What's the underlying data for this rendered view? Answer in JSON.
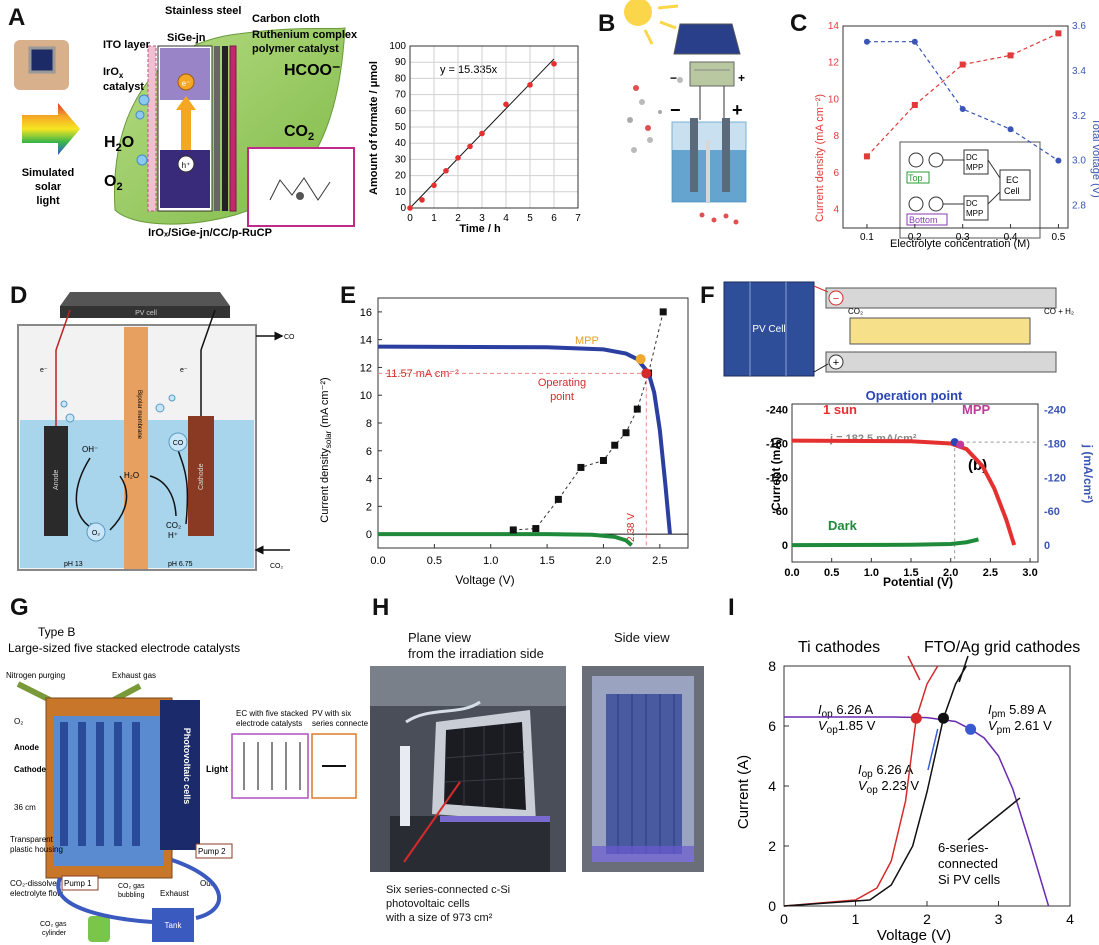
{
  "panels": {
    "A": "A",
    "B": "B",
    "C": "C",
    "D": "D",
    "E": "E",
    "F": "F",
    "G": "G",
    "H": "H",
    "I": "I"
  },
  "panel_a": {
    "labels": {
      "ito": "ITO layer",
      "irox_1": "IrO",
      "irox_sub": "x",
      "irox_2": "catalyst",
      "stainless": "Stainless steel",
      "carbon": "Carbon cloth",
      "siGe": "SiGe-jn",
      "ruth_1": "Ruthenium complex",
      "ruth_2": "polymer catalyst",
      "hcoo": "HCOO⁻",
      "co2": "CO",
      "co2_sub": "2",
      "h2o": "H",
      "h2o_sub": "2",
      "h2o_end": "O",
      "o2": "O",
      "o2_sub": "2",
      "e": "e⁻",
      "h": "h⁺",
      "sim_1": "Simulated",
      "sim_2": "solar",
      "sim_3": "light",
      "caption": "IrOₓ/SiGe-jn/CC/p-RuCP"
    },
    "chart": {
      "equation": "y = 15.335x",
      "xlabel": "Time / h",
      "ylabel": "Amount of formate / μmol"
    }
  },
  "panel_c": {
    "xlabel": "Electrolyte concentration (M)",
    "ylabel_left": "Current density (mA cm⁻²)",
    "ylabel_right": "Total voltage (V)",
    "inset": {
      "top": "Top",
      "bottom": "Bottom",
      "dc": "DC",
      "mpp": "MPP",
      "ec": "EC",
      "cell": "Cell"
    },
    "colors": {
      "red": "#e03a3a",
      "blue": "#3a55b5",
      "green": "#2a9a3a",
      "purple": "#8a3ab5"
    }
  },
  "panel_d": {
    "pv_cell": "PV cell",
    "bipolar": "Bipolar membrane",
    "anode": "Anode",
    "cathode": "Cathode",
    "oh": "OH⁻",
    "h2o": "H₂O",
    "co_label": "CO",
    "co2_h": "CO₂",
    "h_plus": "H⁺",
    "o2": "O₂",
    "co_bubble": "CO",
    "e_left": "e⁻",
    "e_right": "e⁻",
    "ph_left": "pH 13",
    "ph_right": "pH 6.75",
    "co2_in": "CO₂",
    "arrow_co": "CO"
  },
  "panel_e": {
    "xlabel": "Voltage  (V)",
    "ylabel": "Current density",
    "ylabel_sub": "solar",
    "ylabel_unit": "  (mA cm⁻²)",
    "mpp": "MPP",
    "operating_1": "Operating",
    "operating_2": "point",
    "current_label": "11.57 mA cm⁻²",
    "voltage_label": "2.38 V"
  },
  "panel_f": {
    "pv_cell": "PV Cell",
    "co2": "CO₂",
    "co_h2": "CO + H₂",
    "minus": "−",
    "plus": "+",
    "sun": "1 sun",
    "operation": "Operation point",
    "mpp": "MPP",
    "j": "j = 182.5 mA/cm²",
    "b": "(b)",
    "dark": "Dark",
    "xlabel": "Potential (V)",
    "ylabel_left": "Current (mA)",
    "ylabel_right": "j (mA/cm²)"
  },
  "panel_g": {
    "type": "Type B",
    "title": "Large-sized five stacked electrode catalysts",
    "nitrogen": "Nitrogen purging",
    "exhaust_gas": "Exhaust gas",
    "o2": "O₂",
    "anode": "Anode",
    "cathode": "Cathode",
    "size": "36 cm",
    "housing_1": "Transparent",
    "housing_2": "plastic housing",
    "electrolyte_1": "CO₂-dissolved",
    "electrolyte_2": "electrolyte flow",
    "pv": "Photovoltaic cells",
    "light": "Light",
    "ec_1": "EC  with five stacked",
    "ec_2": "electrode catalysts",
    "pv_1": "PV  with six",
    "pv_2": "series connected",
    "out": "Out",
    "pump1": "Pump 1",
    "pump2": "Pump 2",
    "bubbling_1": "CO₂ gas",
    "bubbling_2": "bubbling",
    "exhaust": "Exhaust",
    "tank": "Tank",
    "cyl_1": "CO₂ gas",
    "cyl_2": "cylinder"
  },
  "panel_h": {
    "plane_1": "Plane view",
    "plane_2": "from the irradiation side",
    "side": "Side view",
    "cap_1": "Six series-connected c-Si",
    "cap_2": "photovoltaic cells",
    "cap_3": "with a size of 973 cm²"
  },
  "panel_i": {
    "ti": "Ti cathodes",
    "fto": "FTO/Ag grid cathodes",
    "iop1_label": "I",
    "iop1_sub": "op",
    "iop1_val": " 6.26 A",
    "vop1_label": "V",
    "vop1_sub": "op",
    "vop1_val": "1.85 V",
    "ipm_label": "I",
    "ipm_sub": "pm",
    "ipm_val": " 5.89 A",
    "vpm_label": "V",
    "vpm_sub": "pm",
    "vpm_val": " 2.61 V",
    "iop2_label": "I",
    "iop2_sub": "op",
    "iop2_val": " 6.26 A",
    "vop2_label": "V",
    "vop2_sub": "op",
    "vop2_val": " 2.23 V",
    "si_1": "6-series-",
    "si_2": "connected",
    "si_3": "Si PV cells",
    "xlabel": "Voltage (V)",
    "ylabel": "Current (A)"
  },
  "chart_data": [
    {
      "id": "A-formate",
      "type": "scatter",
      "title": "",
      "xlabel": "Time / h",
      "ylabel": "Amount of formate / μmol",
      "xlim": [
        0,
        7
      ],
      "ylim": [
        0,
        100
      ],
      "xticks": [
        0,
        1,
        2,
        3,
        4,
        5,
        6,
        7
      ],
      "yticks": [
        0,
        10,
        20,
        30,
        40,
        50,
        60,
        70,
        80,
        90,
        100
      ],
      "grid": true,
      "series": [
        {
          "x": [
            0,
            0.5,
            1,
            1.5,
            2,
            2.5,
            3,
            4,
            5,
            6
          ],
          "y": [
            0,
            5,
            14,
            23,
            31,
            38,
            46,
            64,
            76,
            89
          ]
        }
      ],
      "fit": {
        "label": "y = 15.335x",
        "slope": 15.335
      }
    },
    {
      "id": "C-concentration",
      "type": "scatter",
      "xlabel": "Electrolyte concentration (M)",
      "xlim": [
        0.05,
        0.52
      ],
      "xticks": [
        0.1,
        0.2,
        0.3,
        0.4,
        0.5
      ],
      "left_axis": {
        "label": "Current density (mA cm⁻²)",
        "ylim": [
          3,
          14
        ],
        "ticks": [
          4,
          6,
          8,
          10,
          12,
          14
        ]
      },
      "right_axis": {
        "label": "Total voltage (V)",
        "ylim": [
          2.7,
          3.6
        ],
        "ticks": [
          2.8,
          3.0,
          3.2,
          3.4,
          3.6
        ]
      },
      "series": [
        {
          "axis": "left",
          "x": [
            0.1,
            0.2,
            0.3,
            0.4,
            0.5
          ],
          "y": [
            6.9,
            9.7,
            11.9,
            12.4,
            13.6
          ],
          "color": "#e03a3a"
        },
        {
          "axis": "right",
          "x": [
            0.1,
            0.2,
            0.3,
            0.4,
            0.5
          ],
          "y": [
            3.53,
            3.53,
            3.23,
            3.14,
            3.0
          ],
          "color": "#3a55b5"
        }
      ]
    },
    {
      "id": "E-jv",
      "type": "line",
      "xlabel": "Voltage  (V)",
      "ylabel": "Current density_solar (mA cm⁻²)",
      "xlim": [
        0,
        2.75
      ],
      "ylim": [
        -1,
        17
      ],
      "xticks": [
        0.0,
        0.5,
        1.0,
        1.5,
        2.0,
        2.5
      ],
      "yticks": [
        0,
        2,
        4,
        6,
        8,
        10,
        12,
        14,
        16
      ],
      "series": [
        {
          "x": [
            0,
            1.5,
            2.0,
            2.2,
            2.3,
            2.4,
            2.45,
            2.5,
            2.55,
            2.59
          ],
          "y": [
            13.5,
            13.45,
            13.3,
            13.0,
            12.6,
            11.6,
            10.2,
            7.5,
            3.5,
            0
          ],
          "color": "#2a3fa0"
        },
        {
          "x": [
            0,
            1.5,
            1.9,
            2.1,
            2.2,
            2.25
          ],
          "y": [
            0,
            0,
            -0.05,
            -0.2,
            -0.45,
            -0.8
          ],
          "color": "#1f8a3a"
        },
        {
          "x": [
            1.2,
            1.4,
            1.6,
            1.8,
            2.0,
            2.1,
            2.2,
            2.3,
            2.4,
            2.53
          ],
          "y": [
            0.3,
            0.4,
            2.5,
            4.8,
            5.3,
            6.4,
            7.3,
            9.0,
            11.6,
            16.0
          ],
          "marker": "square",
          "color": "#111111"
        }
      ],
      "annotations": [
        "MPP",
        "Operating point",
        "11.57 mA cm⁻²",
        "2.38 V"
      ]
    },
    {
      "id": "F-iv",
      "type": "line",
      "xlabel": "Potential (V)",
      "xlim": [
        0,
        3.1
      ],
      "xticks": [
        0.0,
        0.5,
        1.0,
        1.5,
        2.0,
        2.5,
        3.0
      ],
      "left_axis": {
        "label": "Current (mA)",
        "ylim": [
          -250,
          30
        ],
        "ticks": [
          0,
          -60,
          -120,
          -180,
          -240
        ]
      },
      "right_axis": {
        "label": "j (mA/cm²)",
        "ticks": [
          0,
          -60,
          -120,
          -180,
          -240
        ]
      },
      "series": [
        {
          "name": "1 sun",
          "x": [
            0,
            1.5,
            2.0,
            2.2,
            2.4,
            2.55,
            2.7,
            2.8
          ],
          "y": [
            -185,
            -184,
            -180,
            -170,
            -140,
            -100,
            -45,
            0
          ],
          "color": "#e53030"
        },
        {
          "name": "Dark",
          "x": [
            0,
            1.5,
            2.0,
            2.2,
            2.35
          ],
          "y": [
            0,
            -0.5,
            -2,
            -5,
            -10
          ],
          "color": "#1f8a3a"
        }
      ],
      "annotations": [
        "Operation point",
        "MPP",
        "j = 182.5 mA/cm²",
        "(b)"
      ]
    },
    {
      "id": "I-iv",
      "type": "line",
      "xlabel": "Voltage (V)",
      "ylabel": "Current (A)",
      "xlim": [
        0,
        4
      ],
      "ylim": [
        0,
        8
      ],
      "xticks": [
        0,
        1,
        2,
        3,
        4
      ],
      "yticks": [
        0,
        2,
        4,
        6,
        8
      ],
      "series": [
        {
          "name": "Ti cathodes",
          "x": [
            0,
            1.0,
            1.3,
            1.5,
            1.7,
            1.85,
            2.0,
            2.15
          ],
          "y": [
            0,
            0.2,
            0.6,
            1.5,
            3.5,
            6.26,
            7.4,
            8.0
          ],
          "color": "#d42a2a"
        },
        {
          "name": "FTO/Ag grid cathodes",
          "x": [
            0,
            1.2,
            1.5,
            1.8,
            2.0,
            2.23,
            2.4,
            2.55
          ],
          "y": [
            0,
            0.2,
            0.7,
            2.0,
            3.8,
            6.26,
            7.4,
            8.0
          ],
          "color": "#111111"
        },
        {
          "name": "6-series-connected Si PV cells",
          "x": [
            0,
            1.5,
            2.0,
            2.4,
            2.61,
            2.8,
            3.0,
            3.2,
            3.45,
            3.7
          ],
          "y": [
            6.3,
            6.3,
            6.28,
            6.15,
            5.89,
            5.6,
            5.0,
            3.9,
            2.0,
            0
          ],
          "color": "#6a2ab0"
        }
      ],
      "points": [
        {
          "label": "Iop 6.26 A Vop 1.85 V",
          "x": 1.85,
          "y": 6.26,
          "color": "#d42a2a"
        },
        {
          "label": "Iop 6.26 A Vop 2.23 V",
          "x": 2.23,
          "y": 6.26,
          "color": "#111111"
        },
        {
          "label": "Ipm 5.89 A Vpm 2.61 V",
          "x": 2.61,
          "y": 5.89,
          "color": "#3a5ad0"
        }
      ]
    }
  ]
}
